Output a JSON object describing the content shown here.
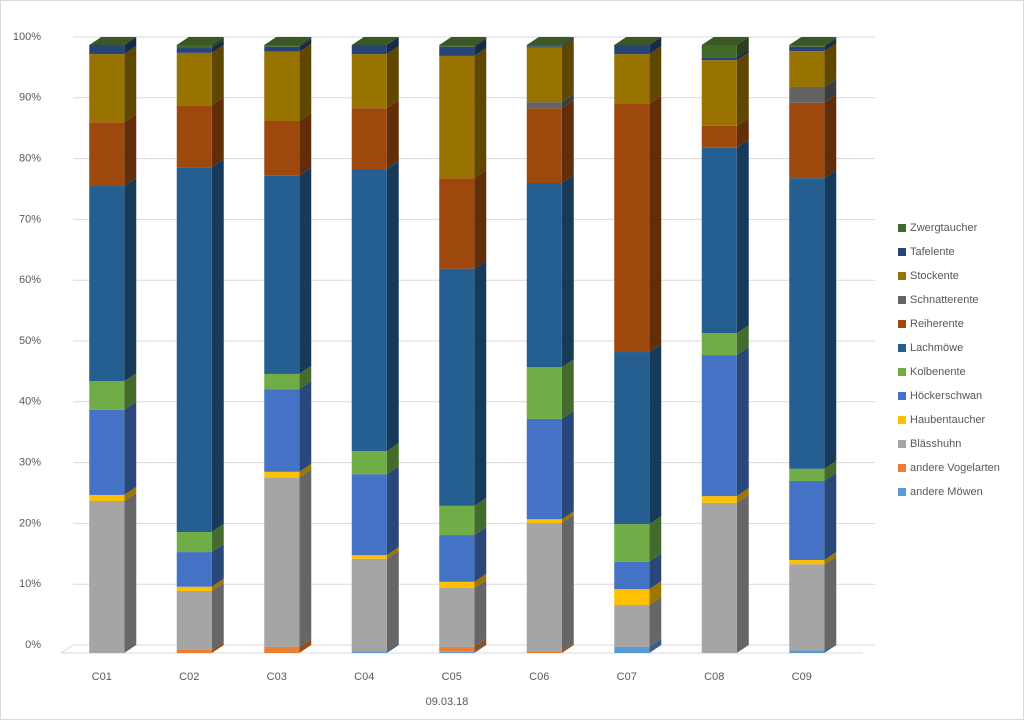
{
  "chart_data": {
    "type": "stacked_bar_100",
    "x_label": "09.03.18",
    "categories": [
      "C01",
      "C02",
      "C03",
      "C04",
      "C05",
      "C06",
      "C07",
      "C08",
      "C09"
    ],
    "ylim": [
      0,
      100
    ],
    "yticks": [
      {
        "value": 0,
        "label": "0%"
      },
      {
        "value": 10,
        "label": "10%"
      },
      {
        "value": 20,
        "label": "20%"
      },
      {
        "value": 30,
        "label": "30%"
      },
      {
        "value": 40,
        "label": "40%"
      },
      {
        "value": 50,
        "label": "50%"
      },
      {
        "value": 60,
        "label": "60%"
      },
      {
        "value": 70,
        "label": "70%"
      },
      {
        "value": 80,
        "label": "80%"
      },
      {
        "value": 90,
        "label": "90%"
      },
      {
        "value": 100,
        "label": "100%"
      }
    ],
    "grid": true,
    "legend": "right",
    "series": [
      {
        "name": "andere Möwen",
        "color": "#5b9bd5",
        "values": [
          0,
          0,
          0,
          0.3,
          0.2,
          0,
          1.0,
          0,
          0.4
        ]
      },
      {
        "name": "andere Vogelarten",
        "color": "#ed7d31",
        "values": [
          0,
          0.5,
          1.0,
          0,
          0.8,
          0.3,
          0,
          0,
          0
        ]
      },
      {
        "name": "Blässhuhn",
        "color": "#a5a5a5",
        "values": [
          25.0,
          9.7,
          27.9,
          15.2,
          9.7,
          21.1,
          6.9,
          24.7,
          14.2
        ]
      },
      {
        "name": "Haubentaucher",
        "color": "#ffc000",
        "values": [
          1.0,
          0.7,
          0.9,
          0.6,
          1.0,
          0.6,
          2.6,
          1.1,
          0.7
        ]
      },
      {
        "name": "Höckerschwan",
        "color": "#4472c4",
        "values": [
          14.0,
          5.7,
          13.6,
          13.3,
          7.7,
          16.5,
          4.5,
          23.2,
          13.0
        ]
      },
      {
        "name": "Kolbenente",
        "color": "#70ad47",
        "values": [
          4.7,
          3.3,
          2.5,
          3.8,
          4.8,
          8.5,
          6.2,
          3.6,
          2.0
        ]
      },
      {
        "name": "Lachmöwe",
        "color": "#255e91",
        "values": [
          32.1,
          60.0,
          32.6,
          46.4,
          39.0,
          30.3,
          28.3,
          30.5,
          47.8
        ]
      },
      {
        "name": "Reiherente",
        "color": "#9e480e",
        "values": [
          10.5,
          10.2,
          9.0,
          10.0,
          14.9,
          12.3,
          40.8,
          3.6,
          12.4
        ]
      },
      {
        "name": "Schnatterente",
        "color": "#636363",
        "values": [
          0,
          0,
          0,
          0,
          0,
          1.0,
          0,
          0,
          2.6
        ]
      },
      {
        "name": "Stockente",
        "color": "#997300",
        "values": [
          11.2,
          8.6,
          11.4,
          8.9,
          20.1,
          9.0,
          8.2,
          10.8,
          5.9
        ]
      },
      {
        "name": "Tafelente",
        "color": "#264478",
        "values": [
          1.5,
          0.8,
          0.8,
          1.5,
          1.5,
          0.2,
          1.5,
          0.5,
          0.7
        ]
      },
      {
        "name": "Zwergtaucher",
        "color": "#43682b",
        "values": [
          0,
          0.5,
          0.3,
          0,
          0.3,
          0.2,
          0,
          2.0,
          0.3
        ]
      }
    ]
  }
}
